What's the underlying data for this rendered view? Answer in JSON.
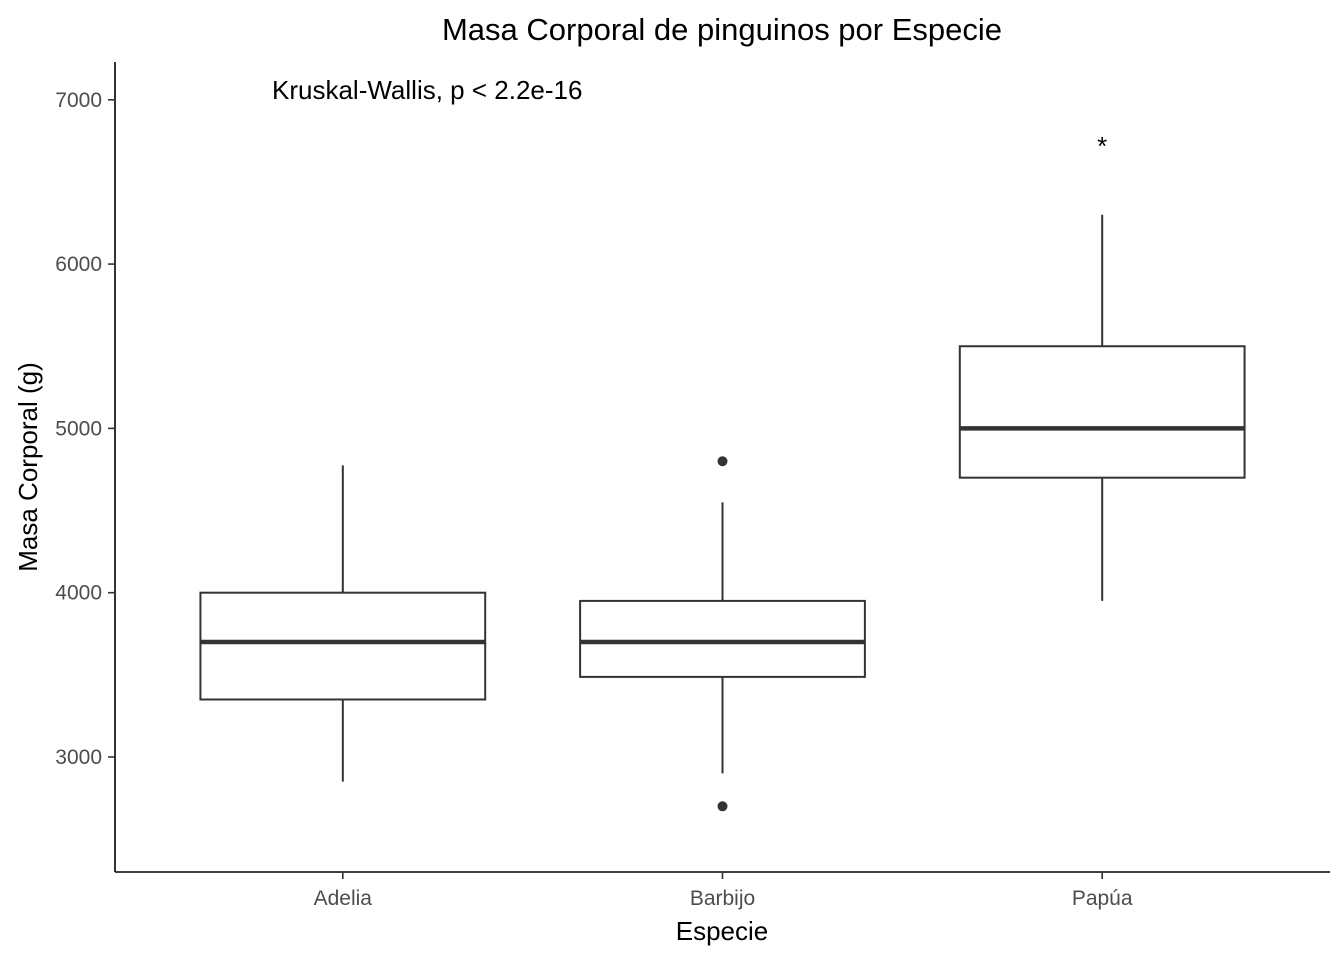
{
  "chart_data": {
    "type": "boxplot",
    "title": "Masa Corporal de pinguinos por Especie",
    "xlabel": "Especie",
    "ylabel": "Masa Corporal (g)",
    "ylim": [
      2300,
      7230
    ],
    "yticks": [
      3000,
      4000,
      5000,
      6000,
      7000
    ],
    "categories": [
      "Adelia",
      "Barbijo",
      "Papúa"
    ],
    "boxes": [
      {
        "category": "Adelia",
        "lower_whisker": 2850,
        "q1": 3350,
        "median": 3700,
        "q3": 4000,
        "upper_whisker": 4775,
        "outliers": []
      },
      {
        "category": "Barbijo",
        "lower_whisker": 2900,
        "q1": 3487.5,
        "median": 3700,
        "q3": 3950,
        "upper_whisker": 4550,
        "outliers": [
          2700,
          4800
        ]
      },
      {
        "category": "Papúa",
        "lower_whisker": 3950,
        "q1": 4700,
        "median": 5000,
        "q3": 5500,
        "upper_whisker": 6300,
        "outliers": []
      }
    ],
    "annotation": "Kruskal-Wallis, p < 2.2e-16",
    "significance": {
      "category": "Papúa",
      "label": "*",
      "y": 6750
    },
    "grid": false,
    "legend": "none"
  }
}
